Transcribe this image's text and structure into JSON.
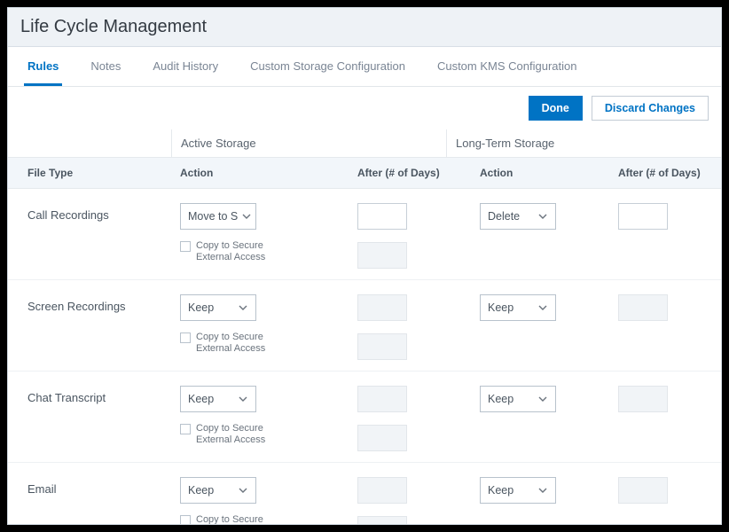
{
  "title": "Life Cycle Management",
  "tabs": [
    {
      "label": "Rules",
      "active": true
    },
    {
      "label": "Notes",
      "active": false
    },
    {
      "label": "Audit History",
      "active": false
    },
    {
      "label": "Custom Storage Configuration",
      "active": false
    },
    {
      "label": "Custom KMS Configuration",
      "active": false
    }
  ],
  "buttons": {
    "done": "Done",
    "discard": "Discard Changes"
  },
  "groups": {
    "active": "Active Storage",
    "longterm": "Long-Term Storage"
  },
  "headers": {
    "filetype": "File Type",
    "action": "Action",
    "after": "After (# of Days)"
  },
  "checkbox_label": "Copy to Secure External Access",
  "rows": [
    {
      "label": "Call Recordings",
      "active_action": "Move to S",
      "active_days_enabled": true,
      "lt_action": "Delete",
      "lt_days_enabled": true,
      "extra_days_enabled": false
    },
    {
      "label": "Screen Recordings",
      "active_action": "Keep",
      "active_days_enabled": false,
      "lt_action": "Keep",
      "lt_days_enabled": false,
      "extra_days_enabled": false
    },
    {
      "label": "Chat Transcript",
      "active_action": "Keep",
      "active_days_enabled": false,
      "lt_action": "Keep",
      "lt_days_enabled": false,
      "extra_days_enabled": false
    },
    {
      "label": "Email",
      "active_action": "Keep",
      "active_days_enabled": false,
      "lt_action": "Keep",
      "lt_days_enabled": false,
      "extra_days_enabled": false
    }
  ],
  "colors": {
    "accent": "#0073c4",
    "title_bg": "#eef2f6",
    "header_bg": "#f2f6fa",
    "border": "#e5e9ed"
  }
}
